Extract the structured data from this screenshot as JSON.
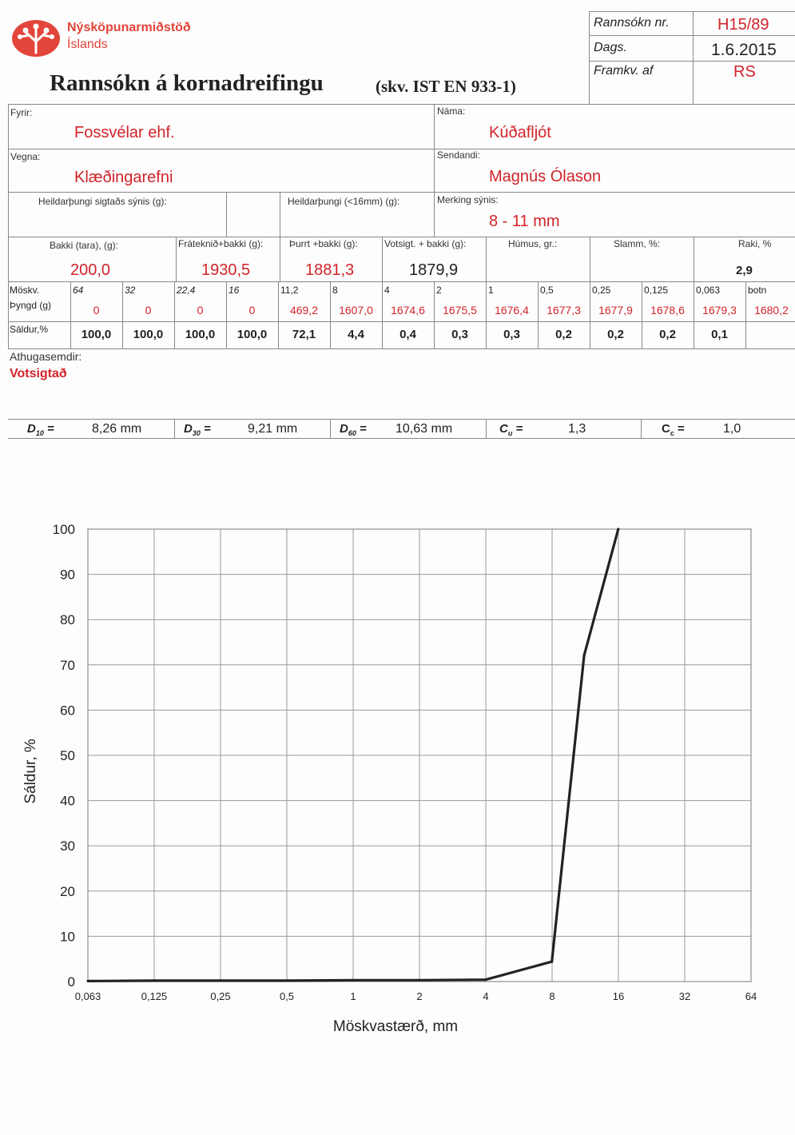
{
  "org": {
    "name_line1": "Nýsköpunarmiðstöð",
    "name_line2": "Íslands",
    "logo_icon": "tree-logo-icon"
  },
  "header": {
    "title": "Rannsókn á kornadreifingu",
    "standard": "(skv. IST EN 933-1)",
    "rannsokn_label": "Rannsókn nr.",
    "rannsokn_value": "H15/89",
    "dags_label": "Dags.",
    "dags_value": "1.6.2015",
    "framkv_label": "Framkv. af",
    "framkv_value": "RS"
  },
  "info": {
    "fyrir_label": "Fyrir:",
    "fyrir_value": "Fossvélar ehf.",
    "nama_label": "Náma:",
    "nama_value": "Kúðafljót",
    "vegna_label": "Vegna:",
    "vegna_value": "Klæðingarefni",
    "sendandi_label": "Sendandi:",
    "sendandi_value": "Magnús Ólason",
    "heild_label": "Heildarþungi sigtaðs sýnis (g):",
    "heild16_label": "Heildarþungi (<16mm) (g):",
    "merking_label": "Merking sýnis:",
    "merking_value": "8 - 11 mm"
  },
  "weights": {
    "bakki_label": "Bakki (tara), (g):",
    "bakki_value": "200,0",
    "fratekid_label": "Fráteknið+bakki (g):",
    "fratekid_value": "1930,5",
    "thurrt_label": "Þurrt +bakki (g):",
    "thurrt_value": "1881,3",
    "votsigt_label": "Votsigt. + bakki (g):",
    "votsigt_value": "1879,9",
    "humus_label": "Húmus, gr.:",
    "slamm_label": "Slamm, %:",
    "raki_label": "Raki, %",
    "raki_value": "2,9"
  },
  "sieve": {
    "moskv_label": "Möskv.",
    "thyngd_label": "Þyngd (g)",
    "saldur_label": "Sáldur,%",
    "sizes": [
      "64",
      "32",
      "22,4",
      "16",
      "11,2",
      "8",
      "4",
      "2",
      "1",
      "0,5",
      "0,25",
      "0,125",
      "0,063",
      "botn"
    ],
    "weights": [
      "0",
      "0",
      "0",
      "0",
      "469,2",
      "1607,0",
      "1674,6",
      "1675,5",
      "1676,4",
      "1677,3",
      "1677,9",
      "1678,6",
      "1679,3",
      "1680,2"
    ],
    "passing": [
      "100,0",
      "100,0",
      "100,0",
      "100,0",
      "72,1",
      "4,4",
      "0,4",
      "0,3",
      "0,3",
      "0,2",
      "0,2",
      "0,2",
      "0,1",
      ""
    ]
  },
  "remarks": {
    "label": "Athugasemdir:",
    "value": "Votsigtað"
  },
  "params": {
    "d10_label": "D",
    "d10_sub": "10",
    "d10_value": "8,26 mm",
    "d30_label": "D",
    "d30_sub": "30",
    "d30_value": "9,21 mm",
    "d60_label": "D",
    "d60_sub": "60",
    "d60_value": "10,63 mm",
    "cu_label": "C",
    "cu_sub": "u",
    "cu_value": "1,3",
    "cc_label": "C",
    "cc_sub": "c",
    "cc_value": "1,0",
    "eq": "="
  },
  "chart_data": {
    "type": "line",
    "xlabel": "Möskvastærð, mm",
    "ylabel": "Sáldur, %",
    "x_scale": "log2",
    "x_ticks": [
      "0,063",
      "0,125",
      "0,25",
      "0,5",
      "1",
      "2",
      "4",
      "8",
      "16",
      "32",
      "64"
    ],
    "y_ticks": [
      "0",
      "10",
      "20",
      "30",
      "40",
      "50",
      "60",
      "70",
      "80",
      "90",
      "100"
    ],
    "ylim": [
      0,
      100
    ],
    "grid": true,
    "series": [
      {
        "x": [
          0.063,
          0.125,
          0.25,
          0.5,
          1,
          2,
          4,
          8,
          11.2,
          16
        ],
        "y": [
          0.1,
          0.2,
          0.2,
          0.2,
          0.3,
          0.3,
          0.4,
          4.4,
          72.1,
          100.0
        ]
      }
    ]
  }
}
